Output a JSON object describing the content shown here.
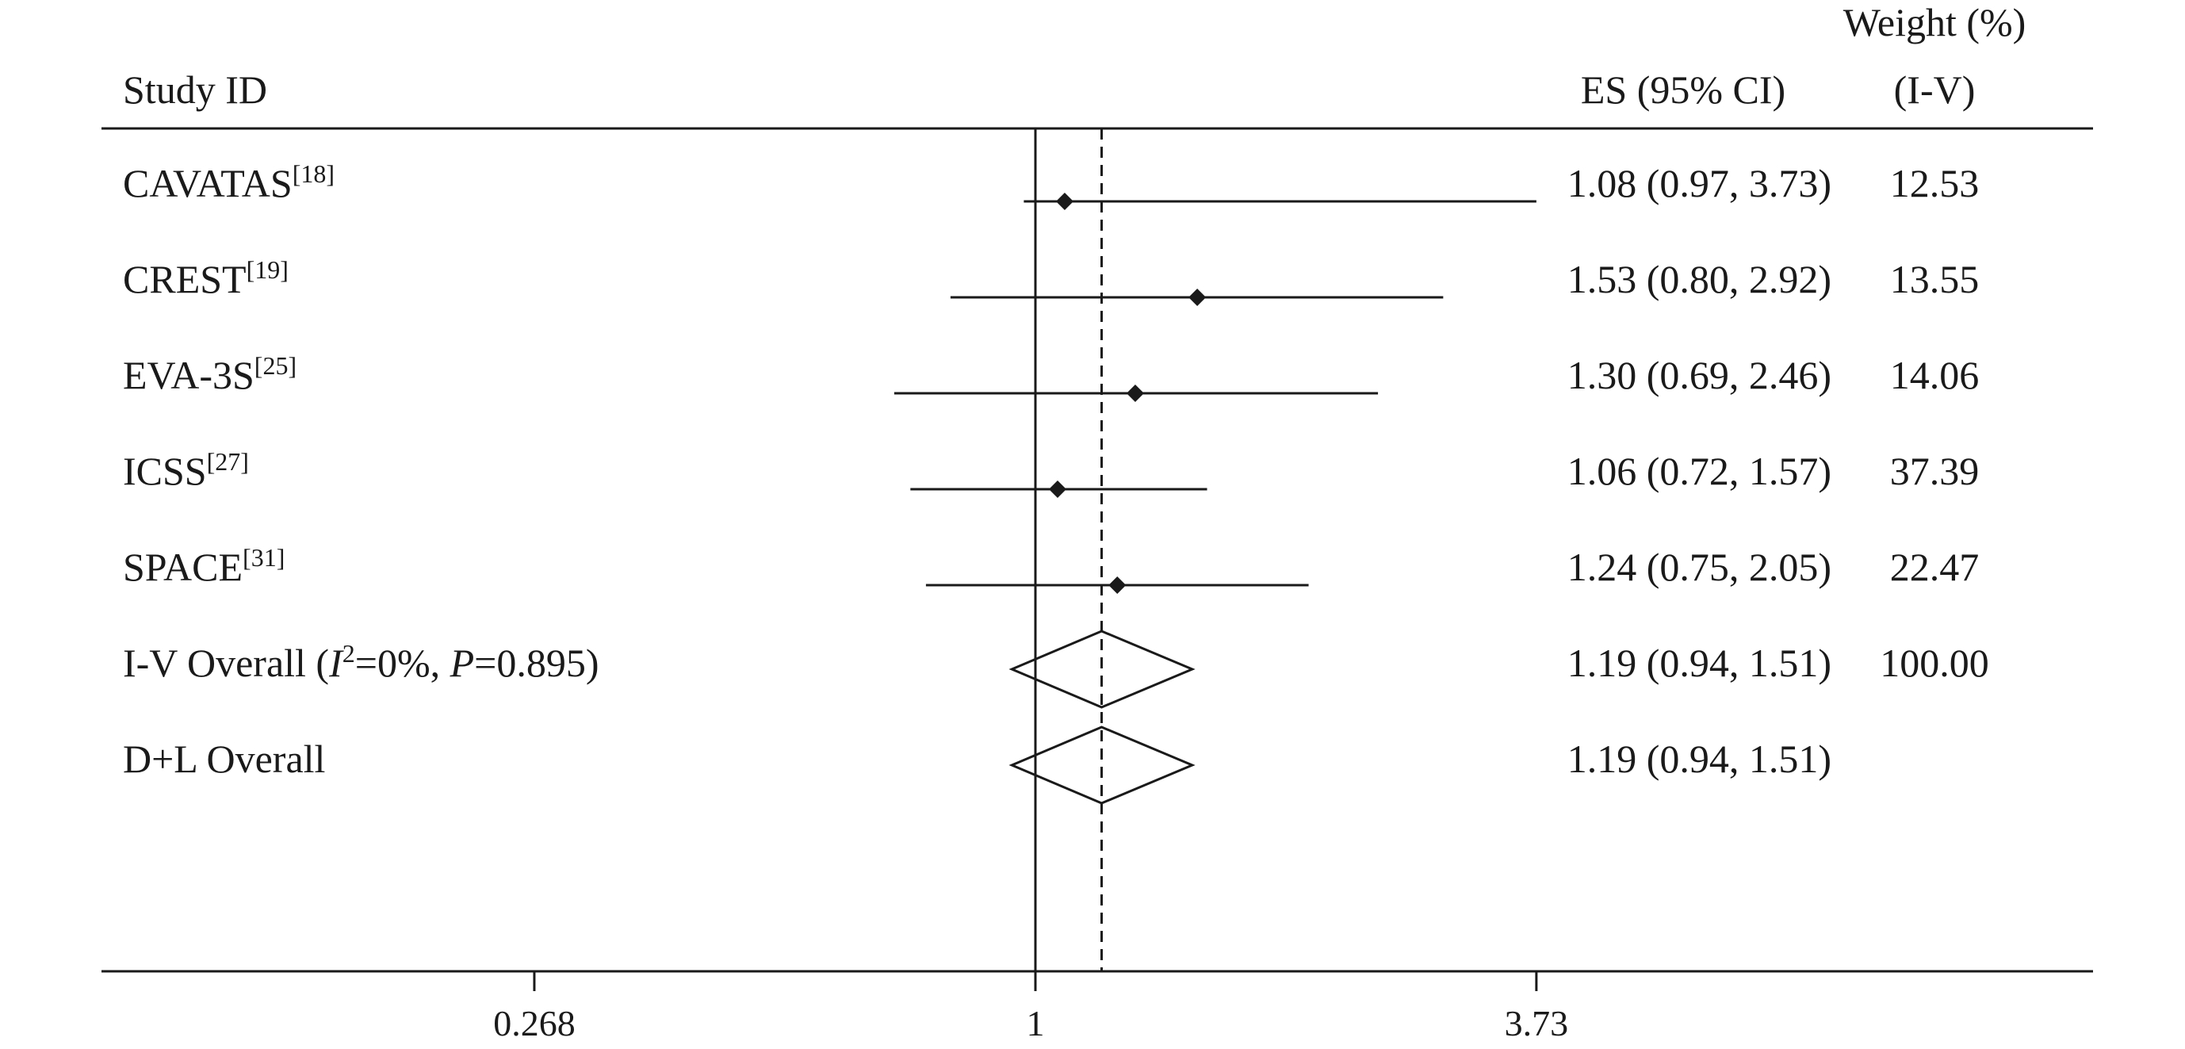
{
  "chart_data": {
    "type": "forest",
    "header": {
      "study": "Study ID",
      "es": "ES (95% CI)",
      "weight_line1": "Weight (%)",
      "weight_line2": "(I-V)"
    },
    "studies": [
      {
        "name": "CAVATAS",
        "ref": "[18]",
        "es": 1.08,
        "lo": 0.97,
        "hi": 3.73,
        "es_text": "1.08 (0.97, 3.73)",
        "weight": "12.53"
      },
      {
        "name": "CREST",
        "ref": "[19]",
        "es": 1.53,
        "lo": 0.8,
        "hi": 2.92,
        "es_text": "1.53 (0.80, 2.92)",
        "weight": "13.55"
      },
      {
        "name": "EVA-3S",
        "ref": "[25]",
        "es": 1.3,
        "lo": 0.69,
        "hi": 2.46,
        "es_text": "1.30 (0.69, 2.46)",
        "weight": "14.06"
      },
      {
        "name": "ICSS",
        "ref": "[27]",
        "es": 1.06,
        "lo": 0.72,
        "hi": 1.57,
        "es_text": "1.06 (0.72, 1.57)",
        "weight": "37.39"
      },
      {
        "name": "SPACE",
        "ref": "[31]",
        "es": 1.24,
        "lo": 0.75,
        "hi": 2.05,
        "es_text": "1.24 (0.75, 2.05)",
        "weight": "22.47"
      }
    ],
    "overall": [
      {
        "label_prefix": "I-V Overall  (",
        "i_symbol": "I",
        "i_exp": "2",
        "i_rest": "=0%, ",
        "p_symbol": "P",
        "p_rest": "=0.895)",
        "es": 1.19,
        "lo": 0.94,
        "hi": 1.51,
        "es_text": "1.19 (0.94, 1.51)",
        "weight": "100.00"
      },
      {
        "label_prefix": "D+L Overall",
        "es": 1.19,
        "lo": 0.94,
        "hi": 1.51,
        "es_text": "1.19 (0.94, 1.51)",
        "weight": ""
      }
    ],
    "x_axis": {
      "scale": "log",
      "ticks": [
        0.268,
        1,
        3.73
      ],
      "tick_labels": [
        "0.268",
        "1",
        "3.73"
      ],
      "null_line": 1,
      "overall_line": 1.19
    }
  }
}
